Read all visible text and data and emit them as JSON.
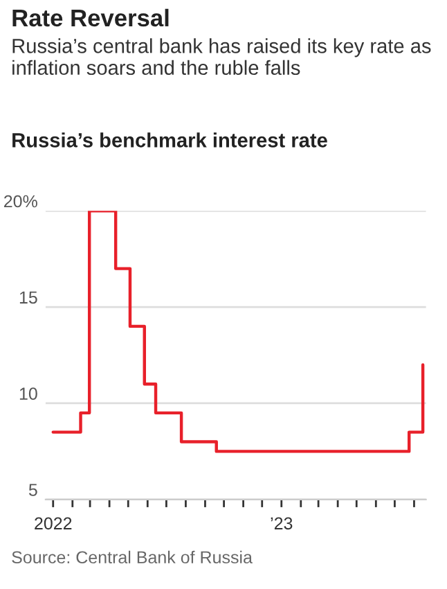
{
  "chart_data": {
    "type": "step",
    "title": "Rate Reversal",
    "subtitle": "Russia’s central bank has raised its key rate as inflation soars and the ruble falls",
    "ylabel": "Russia’s benchmark interest rate",
    "annotations": [
      "Source: Central Bank of Russia"
    ],
    "x": [
      "2022-01-01",
      "2022-02-14",
      "2022-02-28",
      "2022-04-11",
      "2022-05-04",
      "2022-05-27",
      "2022-06-14",
      "2022-07-25",
      "2022-09-19",
      "2023-07-24",
      "2023-08-15"
    ],
    "series": [
      {
        "color": "#e8202a",
        "values": [
          8.5,
          9.5,
          20,
          17,
          14,
          11,
          9.5,
          8,
          7.5,
          8.5,
          12
        ]
      }
    ],
    "xlim": [
      "2021-12-20",
      "2023-08-20"
    ],
    "xticks": [
      {
        "value": "2022-01",
        "label": "2022"
      },
      {
        "value": "2022-02",
        "label": null
      },
      {
        "value": "2022-03",
        "label": null
      },
      {
        "value": "2022-04",
        "label": null
      },
      {
        "value": "2022-05",
        "label": null
      },
      {
        "value": "2022-06",
        "label": null
      },
      {
        "value": "2022-07",
        "label": null
      },
      {
        "value": "2022-08",
        "label": null
      },
      {
        "value": "2022-09",
        "label": null
      },
      {
        "value": "2022-10",
        "label": null
      },
      {
        "value": "2022-11",
        "label": null
      },
      {
        "value": "2022-12",
        "label": null
      },
      {
        "value": "2023-01",
        "label": "’23"
      },
      {
        "value": "2023-02",
        "label": null
      },
      {
        "value": "2023-03",
        "label": null
      },
      {
        "value": "2023-04",
        "label": null
      },
      {
        "value": "2023-05",
        "label": null
      },
      {
        "value": "2023-06",
        "label": null
      },
      {
        "value": "2023-07",
        "label": null
      },
      {
        "value": "2023-08",
        "label": null
      }
    ],
    "ylim": [
      5,
      20
    ],
    "yticks": [
      5,
      10,
      15,
      {
        "value": 20,
        "label": "20%"
      }
    ],
    "grid": "y",
    "line_style": "solid",
    "marker": "none"
  }
}
